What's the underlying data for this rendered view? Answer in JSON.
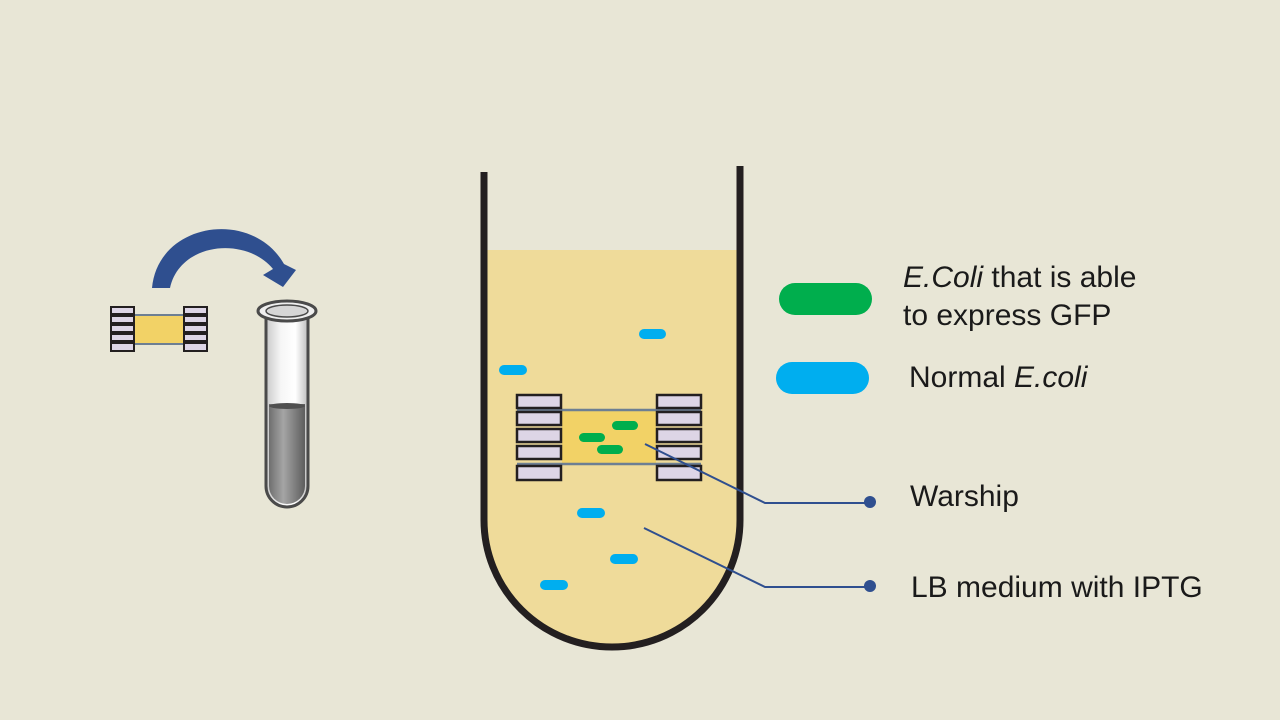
{
  "colors": {
    "background": "#e8e6d6",
    "gfp_ecoli": "#00ae4d",
    "normal_ecoli": "#00aeef",
    "medium": "#efdb9a",
    "warship_core": "#f2d266",
    "warship_float": "#ddd5e6",
    "arrow": "#2f4f8f",
    "leader_line": "#2f4f8f",
    "outline": "#231f20"
  },
  "legend": {
    "gfp": {
      "icon": "green-capsule",
      "line1_italic": "E.Coli",
      "line1_rest": " that is able",
      "line2": "to express GFP"
    },
    "normal": {
      "icon": "blue-capsule",
      "plain": "Normal ",
      "italic": "E.coli"
    }
  },
  "labels": {
    "warship": "Warship",
    "medium": "LB medium with IPTG"
  }
}
